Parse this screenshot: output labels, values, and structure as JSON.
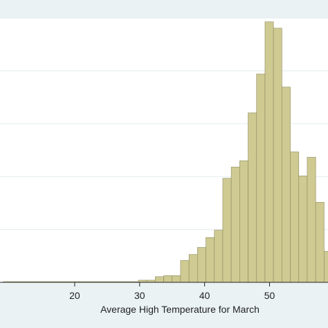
{
  "chart_data": {
    "type": "bar",
    "subtype": "histogram",
    "xlabel": "Average High Temperature for March",
    "ylabel": "",
    "title": "",
    "xlim": [
      8.5,
      59
    ],
    "ylim": [
      0,
      0.075
    ],
    "x_ticks": [
      20,
      30,
      40,
      50
    ],
    "x_tick_labels": [
      "20",
      "30",
      "40",
      "50"
    ],
    "y_gridlines": [
      0.015,
      0.03,
      0.045,
      0.06,
      0.075
    ],
    "bin_width": 1.3,
    "grid": true,
    "legend": "none",
    "colors": {
      "background": "#eaf2f3",
      "plot_background": "#ffffff",
      "bar_fill": "#cfca92",
      "bar_edge": "#8c8a5e",
      "grid": "#e3ebed",
      "axis": "#222222"
    },
    "bins": [
      {
        "start": 9.0,
        "value": 0.0002
      },
      {
        "start": 10.3,
        "value": 0.0002
      },
      {
        "start": 11.6,
        "value": 0.0002
      },
      {
        "start": 12.9,
        "value": 0.0002
      },
      {
        "start": 14.2,
        "value": 0.0002
      },
      {
        "start": 15.5,
        "value": 0.0002
      },
      {
        "start": 16.8,
        "value": 0.0002
      },
      {
        "start": 18.1,
        "value": 0.0002
      },
      {
        "start": 19.4,
        "value": 0.0002
      },
      {
        "start": 20.7,
        "value": 0.0002
      },
      {
        "start": 22.0,
        "value": 0.0002
      },
      {
        "start": 23.3,
        "value": 0.0002
      },
      {
        "start": 24.6,
        "value": 0.0002
      },
      {
        "start": 25.9,
        "value": 0.0002
      },
      {
        "start": 27.2,
        "value": 0.0002
      },
      {
        "start": 28.5,
        "value": 0.0002
      },
      {
        "start": 29.8,
        "value": 0.0006
      },
      {
        "start": 31.1,
        "value": 0.0006
      },
      {
        "start": 32.4,
        "value": 0.0016
      },
      {
        "start": 33.7,
        "value": 0.0019
      },
      {
        "start": 35.0,
        "value": 0.0019
      },
      {
        "start": 36.3,
        "value": 0.0062
      },
      {
        "start": 37.6,
        "value": 0.0079
      },
      {
        "start": 38.9,
        "value": 0.0099
      },
      {
        "start": 40.2,
        "value": 0.0127
      },
      {
        "start": 41.5,
        "value": 0.0148
      },
      {
        "start": 42.8,
        "value": 0.0295
      },
      {
        "start": 44.1,
        "value": 0.0327
      },
      {
        "start": 45.4,
        "value": 0.0345
      },
      {
        "start": 46.7,
        "value": 0.0481
      },
      {
        "start": 48.0,
        "value": 0.0591
      },
      {
        "start": 49.3,
        "value": 0.0739
      },
      {
        "start": 50.6,
        "value": 0.0721
      },
      {
        "start": 51.9,
        "value": 0.0554
      },
      {
        "start": 53.2,
        "value": 0.037
      },
      {
        "start": 54.5,
        "value": 0.0302
      },
      {
        "start": 55.8,
        "value": 0.0355
      },
      {
        "start": 57.1,
        "value": 0.0227
      },
      {
        "start": 58.4,
        "value": 0.0088
      }
    ]
  }
}
